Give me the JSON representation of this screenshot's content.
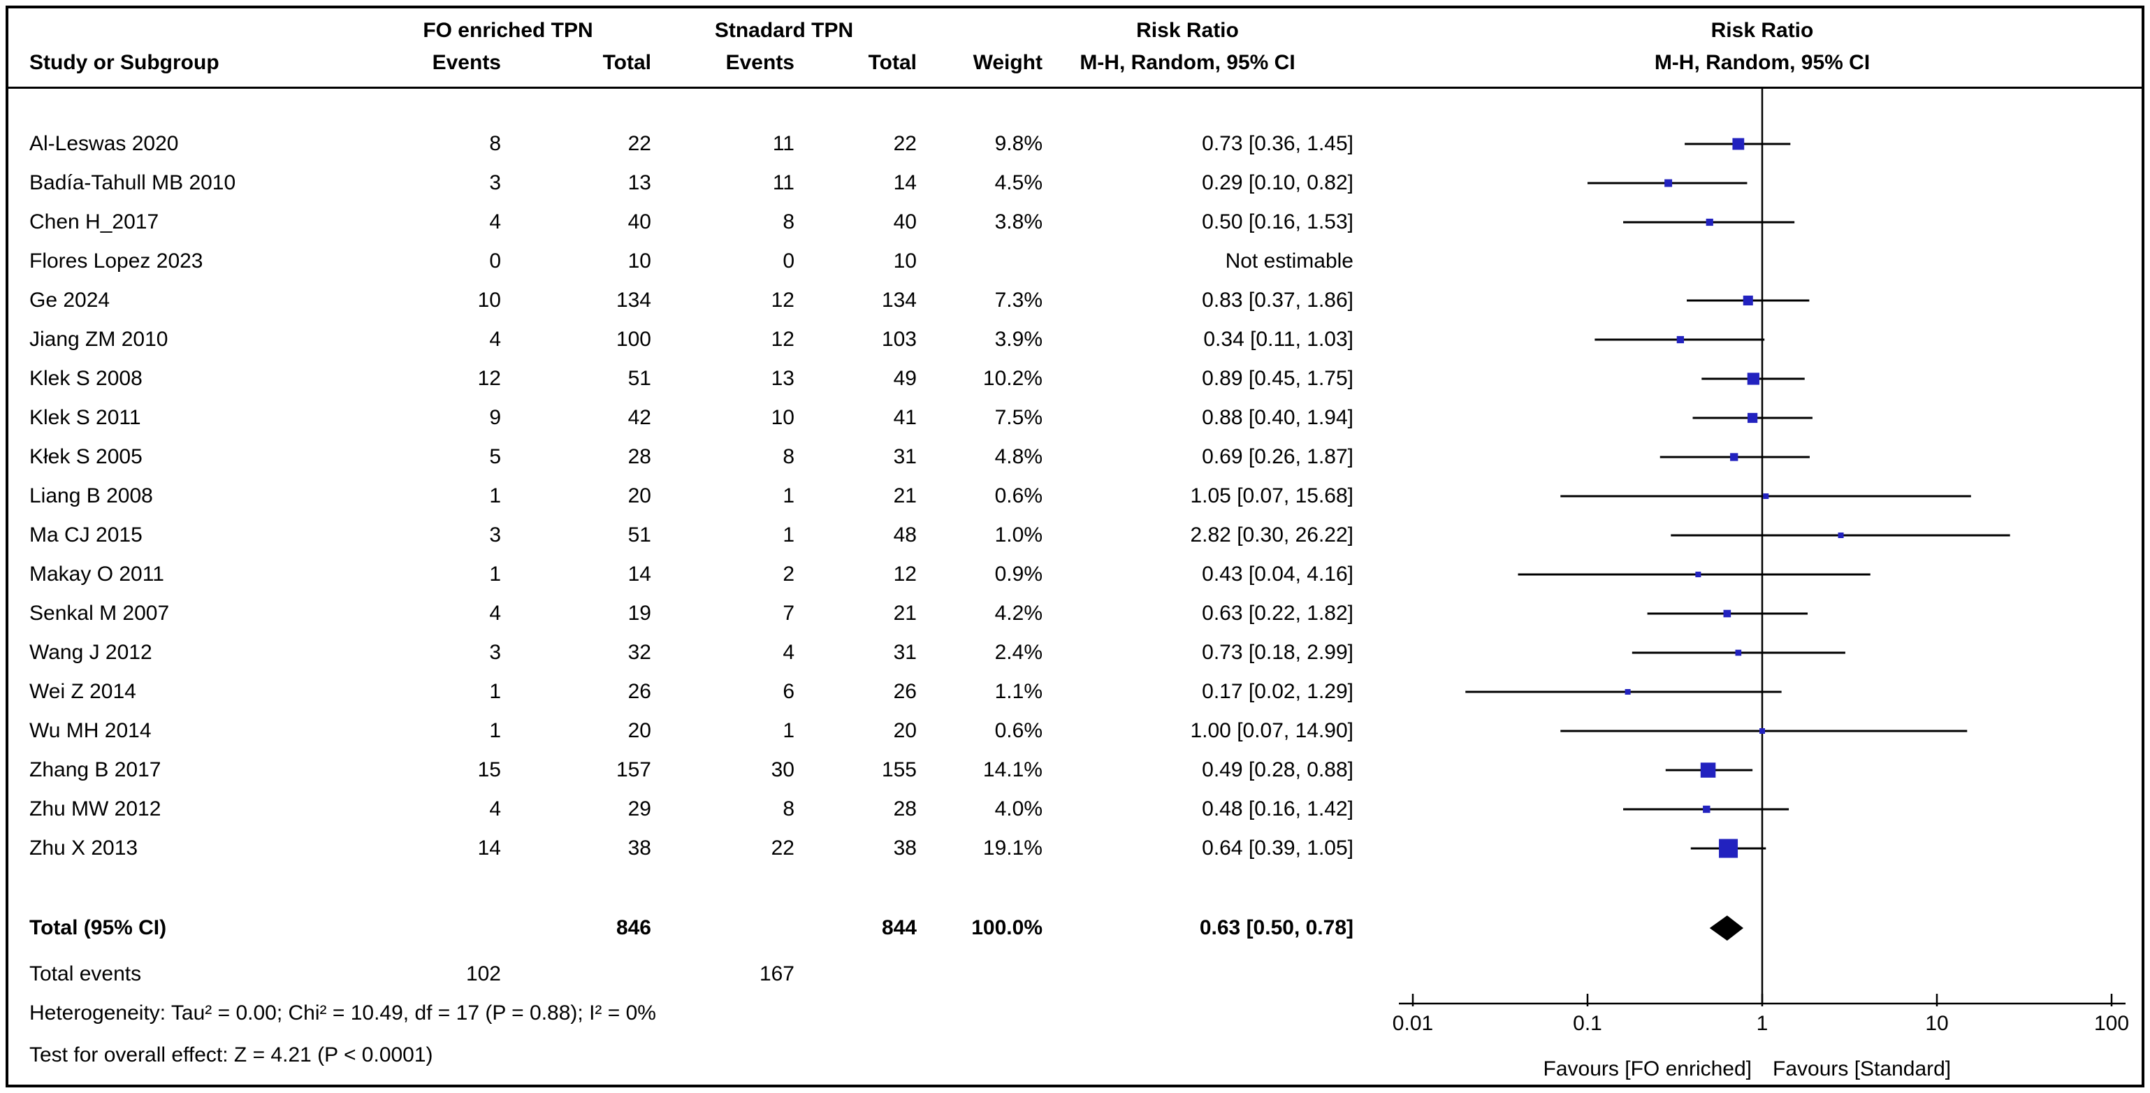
{
  "header": {
    "study": "Study or Subgroup",
    "group_fo": "FO enriched TPN",
    "group_std": "Stnadard TPN",
    "events": "Events",
    "total": "Total",
    "weight": "Weight",
    "risk_ratio": "Risk Ratio",
    "mh": "M-H, Random, 95% CI"
  },
  "footer": {
    "total_label": "Total (95% CI)",
    "total_t1": "846",
    "total_t2": "844",
    "total_weight": "100.0%",
    "total_ci": "0.63 [0.50, 0.78]",
    "total_events_label": "Total events",
    "total_events_1": "102",
    "total_events_2": "167",
    "heterogeneity": "Heterogeneity: Tau² = 0.00; Chi² = 10.49, df = 17 (P = 0.88); I² = 0%",
    "overall": "Test for overall effect: Z = 4.21 (P < 0.0001)"
  },
  "colors": {
    "marker": "#2222bf",
    "line": "#000000",
    "diamond": "#000000",
    "text": "#000000",
    "border": "#000000"
  },
  "chart_data": {
    "type": "forest",
    "effect_measure": "Risk Ratio",
    "method": "M-H, Random, 95% CI",
    "x_scale": "log",
    "x_range": [
      0.01,
      100
    ],
    "x_ticks": [
      "0.01",
      "0.1",
      "1",
      "10",
      "100"
    ],
    "favours_left": "Favours [FO enriched]",
    "favours_right": "Favours [Standard]",
    "studies": [
      {
        "name": "Al-Leswas 2020",
        "fo_events": 8,
        "fo_total": 22,
        "std_events": 11,
        "std_total": 22,
        "weight": "9.8%",
        "weight_pct": 9.8,
        "rr": 0.73,
        "ci_low": 0.36,
        "ci_high": 1.45,
        "ci_text": "0.73 [0.36, 1.45]"
      },
      {
        "name": "Badía-Tahull MB 2010",
        "fo_events": 3,
        "fo_total": 13,
        "std_events": 11,
        "std_total": 14,
        "weight": "4.5%",
        "weight_pct": 4.5,
        "rr": 0.29,
        "ci_low": 0.1,
        "ci_high": 0.82,
        "ci_text": "0.29 [0.10, 0.82]"
      },
      {
        "name": "Chen H_2017",
        "fo_events": 4,
        "fo_total": 40,
        "std_events": 8,
        "std_total": 40,
        "weight": "3.8%",
        "weight_pct": 3.8,
        "rr": 0.5,
        "ci_low": 0.16,
        "ci_high": 1.53,
        "ci_text": "0.50 [0.16, 1.53]"
      },
      {
        "name": "Flores Lopez 2023",
        "fo_events": 0,
        "fo_total": 10,
        "std_events": 0,
        "std_total": 10,
        "weight": "",
        "weight_pct": null,
        "rr": null,
        "ci_low": null,
        "ci_high": null,
        "ci_text": "Not estimable"
      },
      {
        "name": "Ge 2024",
        "fo_events": 10,
        "fo_total": 134,
        "std_events": 12,
        "std_total": 134,
        "weight": "7.3%",
        "weight_pct": 7.3,
        "rr": 0.83,
        "ci_low": 0.37,
        "ci_high": 1.86,
        "ci_text": "0.83 [0.37, 1.86]"
      },
      {
        "name": "Jiang ZM 2010",
        "fo_events": 4,
        "fo_total": 100,
        "std_events": 12,
        "std_total": 103,
        "weight": "3.9%",
        "weight_pct": 3.9,
        "rr": 0.34,
        "ci_low": 0.11,
        "ci_high": 1.03,
        "ci_text": "0.34 [0.11, 1.03]"
      },
      {
        "name": "Klek S 2008",
        "fo_events": 12,
        "fo_total": 51,
        "std_events": 13,
        "std_total": 49,
        "weight": "10.2%",
        "weight_pct": 10.2,
        "rr": 0.89,
        "ci_low": 0.45,
        "ci_high": 1.75,
        "ci_text": "0.89 [0.45, 1.75]"
      },
      {
        "name": "Klek S 2011",
        "fo_events": 9,
        "fo_total": 42,
        "std_events": 10,
        "std_total": 41,
        "weight": "7.5%",
        "weight_pct": 7.5,
        "rr": 0.88,
        "ci_low": 0.4,
        "ci_high": 1.94,
        "ci_text": "0.88 [0.40, 1.94]"
      },
      {
        "name": "Kłek S 2005",
        "fo_events": 5,
        "fo_total": 28,
        "std_events": 8,
        "std_total": 31,
        "weight": "4.8%",
        "weight_pct": 4.8,
        "rr": 0.69,
        "ci_low": 0.26,
        "ci_high": 1.87,
        "ci_text": "0.69 [0.26, 1.87]"
      },
      {
        "name": "Liang B 2008",
        "fo_events": 1,
        "fo_total": 20,
        "std_events": 1,
        "std_total": 21,
        "weight": "0.6%",
        "weight_pct": 0.6,
        "rr": 1.05,
        "ci_low": 0.07,
        "ci_high": 15.68,
        "ci_text": "1.05 [0.07, 15.68]"
      },
      {
        "name": "Ma CJ 2015",
        "fo_events": 3,
        "fo_total": 51,
        "std_events": 1,
        "std_total": 48,
        "weight": "1.0%",
        "weight_pct": 1.0,
        "rr": 2.82,
        "ci_low": 0.3,
        "ci_high": 26.22,
        "ci_text": "2.82 [0.30, 26.22]"
      },
      {
        "name": "Makay O 2011",
        "fo_events": 1,
        "fo_total": 14,
        "std_events": 2,
        "std_total": 12,
        "weight": "0.9%",
        "weight_pct": 0.9,
        "rr": 0.43,
        "ci_low": 0.04,
        "ci_high": 4.16,
        "ci_text": "0.43 [0.04, 4.16]"
      },
      {
        "name": "Senkal M 2007",
        "fo_events": 4,
        "fo_total": 19,
        "std_events": 7,
        "std_total": 21,
        "weight": "4.2%",
        "weight_pct": 4.2,
        "rr": 0.63,
        "ci_low": 0.22,
        "ci_high": 1.82,
        "ci_text": "0.63 [0.22, 1.82]"
      },
      {
        "name": "Wang J 2012",
        "fo_events": 3,
        "fo_total": 32,
        "std_events": 4,
        "std_total": 31,
        "weight": "2.4%",
        "weight_pct": 2.4,
        "rr": 0.73,
        "ci_low": 0.18,
        "ci_high": 2.99,
        "ci_text": "0.73 [0.18, 2.99]"
      },
      {
        "name": "Wei Z 2014",
        "fo_events": 1,
        "fo_total": 26,
        "std_events": 6,
        "std_total": 26,
        "weight": "1.1%",
        "weight_pct": 1.1,
        "rr": 0.17,
        "ci_low": 0.02,
        "ci_high": 1.29,
        "ci_text": "0.17 [0.02, 1.29]"
      },
      {
        "name": "Wu MH 2014",
        "fo_events": 1,
        "fo_total": 20,
        "std_events": 1,
        "std_total": 20,
        "weight": "0.6%",
        "weight_pct": 0.6,
        "rr": 1.0,
        "ci_low": 0.07,
        "ci_high": 14.9,
        "ci_text": "1.00 [0.07, 14.90]"
      },
      {
        "name": "Zhang B 2017",
        "fo_events": 15,
        "fo_total": 157,
        "std_events": 30,
        "std_total": 155,
        "weight": "14.1%",
        "weight_pct": 14.1,
        "rr": 0.49,
        "ci_low": 0.28,
        "ci_high": 0.88,
        "ci_text": "0.49 [0.28, 0.88]"
      },
      {
        "name": "Zhu MW 2012",
        "fo_events": 4,
        "fo_total": 29,
        "std_events": 8,
        "std_total": 28,
        "weight": "4.0%",
        "weight_pct": 4.0,
        "rr": 0.48,
        "ci_low": 0.16,
        "ci_high": 1.42,
        "ci_text": "0.48 [0.16, 1.42]"
      },
      {
        "name": "Zhu X 2013",
        "fo_events": 14,
        "fo_total": 38,
        "std_events": 22,
        "std_total": 38,
        "weight": "19.1%",
        "weight_pct": 19.1,
        "rr": 0.64,
        "ci_low": 0.39,
        "ci_high": 1.05,
        "ci_text": "0.64 [0.39, 1.05]"
      }
    ],
    "total": {
      "rr": 0.63,
      "ci_low": 0.5,
      "ci_high": 0.78
    }
  }
}
